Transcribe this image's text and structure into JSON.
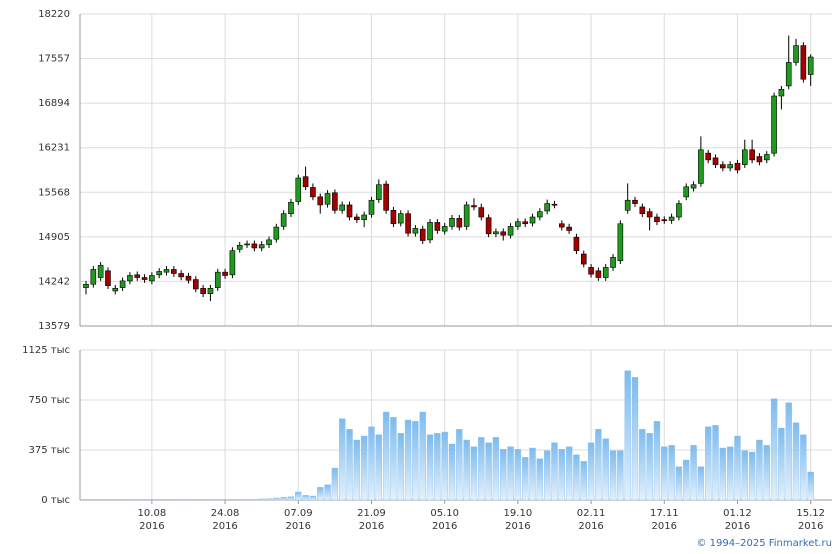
{
  "chart_data": [
    {
      "type": "candlestick",
      "up_color": "#1f9a1f",
      "down_color": "#a30000",
      "ylim": [
        13579,
        18220
      ],
      "yticks": [
        13579,
        14242,
        14905,
        15568,
        16231,
        16894,
        17557,
        18220
      ],
      "grid": true,
      "open": [
        14150,
        14200,
        14300,
        14400,
        14100,
        14150,
        14250,
        14340,
        14300,
        14250,
        14340,
        14380,
        14420,
        14360,
        14320,
        14270,
        14140,
        14060,
        14150,
        14380,
        14340,
        14720,
        14790,
        14800,
        14740,
        14790,
        14870,
        15060,
        15250,
        15430,
        15800,
        15640,
        15500,
        15390,
        15560,
        15300,
        15380,
        15200,
        15160,
        15240,
        15460,
        15690,
        15300,
        15110,
        15250,
        14960,
        15020,
        14860,
        15120,
        14990,
        15060,
        15180,
        15060,
        15370,
        15340,
        15190,
        14950,
        14980,
        14930,
        15060,
        15130,
        15110,
        15200,
        15290,
        15390,
        15100,
        15050,
        14900,
        14650,
        14450,
        14400,
        14300,
        14450,
        14550,
        15300,
        15450,
        15350,
        15280,
        15200,
        15160,
        15150,
        15200,
        15500,
        15630,
        15700,
        16150,
        16080,
        15980,
        15930,
        16000,
        15980,
        16200,
        16100,
        16050,
        16150,
        17000,
        17150,
        17500,
        17750,
        17320
      ],
      "high": [
        14250,
        14470,
        14530,
        14450,
        14190,
        14300,
        14380,
        14390,
        14350,
        14380,
        14440,
        14470,
        14470,
        14410,
        14370,
        14320,
        14190,
        14190,
        14430,
        14430,
        14750,
        14830,
        14850,
        14850,
        14840,
        14910,
        15100,
        15300,
        15470,
        15830,
        15950,
        15700,
        15550,
        15600,
        15610,
        15430,
        15430,
        15250,
        15280,
        15500,
        15760,
        15740,
        15350,
        15300,
        15300,
        15080,
        15070,
        15170,
        15170,
        15110,
        15230,
        15230,
        15430,
        15480,
        15400,
        15240,
        15030,
        15030,
        15110,
        15180,
        15180,
        15250,
        15330,
        15460,
        15440,
        15150,
        15100,
        14950,
        14700,
        14500,
        14450,
        14500,
        14650,
        15150,
        15700,
        15500,
        15400,
        15330,
        15250,
        15210,
        15250,
        15450,
        15700,
        15730,
        16400,
        16200,
        16130,
        16030,
        16030,
        16050,
        16350,
        16350,
        16150,
        16180,
        17050,
        17150,
        17900,
        17850,
        17800,
        17620
      ],
      "low": [
        14050,
        14150,
        14250,
        14130,
        14050,
        14100,
        14200,
        14250,
        14220,
        14200,
        14290,
        14330,
        14310,
        14260,
        14210,
        14080,
        14010,
        13950,
        14100,
        14280,
        14290,
        14670,
        14740,
        14690,
        14690,
        14740,
        14820,
        15010,
        15200,
        15380,
        15600,
        15450,
        15250,
        15340,
        15250,
        15250,
        15150,
        15110,
        15050,
        15190,
        15410,
        15250,
        15050,
        15060,
        14910,
        14910,
        14800,
        14810,
        14950,
        14940,
        15010,
        15000,
        15010,
        15300,
        15150,
        14900,
        14900,
        14850,
        14880,
        15010,
        15050,
        15060,
        15150,
        15240,
        15330,
        15000,
        14950,
        14650,
        14450,
        14300,
        14250,
        14250,
        14400,
        14500,
        15250,
        15350,
        15200,
        15000,
        15080,
        15100,
        15100,
        15150,
        15450,
        15580,
        15650,
        16000,
        15930,
        15880,
        15880,
        15850,
        15930,
        16000,
        15970,
        16000,
        16100,
        16800,
        17100,
        17450,
        17200,
        17150
      ],
      "close": [
        14200,
        14420,
        14480,
        14180,
        14140,
        14250,
        14330,
        14300,
        14270,
        14330,
        14390,
        14420,
        14360,
        14310,
        14260,
        14130,
        14060,
        14140,
        14380,
        14330,
        14700,
        14780,
        14800,
        14740,
        14790,
        14860,
        15050,
        15250,
        15420,
        15780,
        15650,
        15500,
        15380,
        15550,
        15300,
        15380,
        15200,
        15160,
        15230,
        15450,
        15680,
        15300,
        15100,
        15250,
        14960,
        15030,
        14850,
        15120,
        15000,
        15060,
        15180,
        15050,
        15380,
        15350,
        15200,
        14950,
        14980,
        14930,
        15060,
        15130,
        15100,
        15200,
        15280,
        15400,
        15380,
        15050,
        15000,
        14700,
        14500,
        14350,
        14300,
        14450,
        14600,
        15100,
        15450,
        15400,
        15250,
        15200,
        15130,
        15150,
        15200,
        15400,
        15650,
        15680,
        16200,
        16050,
        15980,
        15930,
        15980,
        15900,
        16200,
        16050,
        16020,
        16130,
        17000,
        17100,
        17500,
        17750,
        17250,
        17580
      ]
    },
    {
      "type": "bar",
      "color": "#8ec4f0",
      "categories": [
        null,
        null,
        null,
        null,
        null,
        null,
        null,
        null,
        null,
        [
          "10.08",
          "2016"
        ],
        null,
        null,
        null,
        null,
        null,
        null,
        null,
        null,
        null,
        [
          "24.08",
          "2016"
        ],
        null,
        null,
        null,
        null,
        null,
        null,
        null,
        null,
        null,
        [
          "07.09",
          "2016"
        ],
        null,
        null,
        null,
        null,
        null,
        null,
        null,
        null,
        null,
        [
          "21.09",
          "2016"
        ],
        null,
        null,
        null,
        null,
        null,
        null,
        null,
        null,
        null,
        [
          "05.10",
          "2016"
        ],
        null,
        null,
        null,
        null,
        null,
        null,
        null,
        null,
        null,
        [
          "19.10",
          "2016"
        ],
        null,
        null,
        null,
        null,
        null,
        null,
        null,
        null,
        null,
        [
          "02.11",
          "2016"
        ],
        null,
        null,
        null,
        null,
        null,
        null,
        null,
        null,
        null,
        [
          "17.11",
          "2016"
        ],
        null,
        null,
        null,
        null,
        null,
        null,
        null,
        null,
        null,
        [
          "01.12",
          "2016"
        ],
        null,
        null,
        null,
        null,
        null,
        null,
        null,
        null,
        null,
        [
          "15.12",
          "2016"
        ]
      ],
      "values": [
        5,
        5,
        5,
        5,
        5,
        5,
        5,
        5,
        5,
        5,
        5,
        5,
        5,
        5,
        5,
        5,
        5,
        5,
        5,
        5,
        5,
        5,
        5,
        5,
        8,
        10,
        15,
        20,
        25,
        60,
        35,
        30,
        95,
        115,
        240,
        610,
        530,
        450,
        480,
        550,
        490,
        660,
        620,
        500,
        600,
        590,
        660,
        490,
        500,
        510,
        420,
        530,
        450,
        400,
        470,
        430,
        470,
        380,
        400,
        380,
        320,
        390,
        310,
        370,
        430,
        380,
        400,
        340,
        290,
        430,
        530,
        460,
        370,
        370,
        970,
        920,
        530,
        500,
        590,
        400,
        410,
        250,
        300,
        410,
        250,
        550,
        560,
        390,
        400,
        480,
        370,
        360,
        450,
        410,
        760,
        540,
        730,
        580,
        490,
        210
      ],
      "ylim": [
        0,
        1125
      ],
      "yticks": [
        {
          "value": 0,
          "label": "0 тыс"
        },
        {
          "value": 375,
          "label": "375 тыс"
        },
        {
          "value": 750,
          "label": "750 тыс"
        },
        {
          "value": 1125,
          "label": "1125 тыс"
        }
      ],
      "grid": true,
      "source": "© 1994–2025 Finmarket.ru"
    }
  ]
}
